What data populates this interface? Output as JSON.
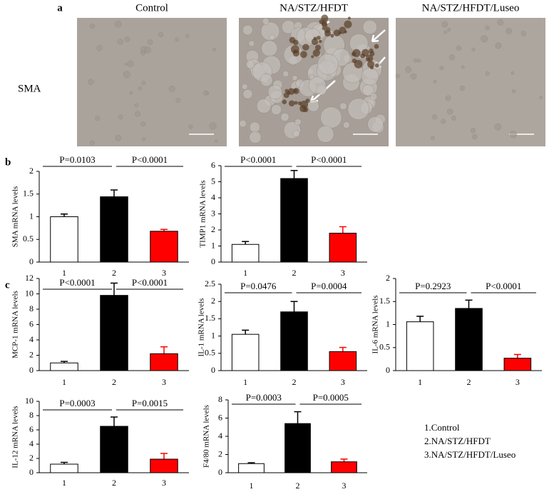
{
  "panel_a": {
    "label": "a",
    "columns": [
      "Control",
      "NA/STZ/HFDT",
      "NA/STZ/HFDT/Luseo"
    ],
    "row_label": "SMA"
  },
  "panel_labels": [
    "b",
    "c"
  ],
  "legend_items": [
    "1.Control",
    "2.NA/STZ/HFDT",
    "3.NA/STZ/HFDT/Luseo"
  ],
  "chart_data": [
    {
      "type": "bar",
      "ylabel": "SMA mRNA levels",
      "categories": [
        "1",
        "2",
        "3"
      ],
      "values": [
        1.0,
        1.44,
        0.68
      ],
      "errors": [
        0.06,
        0.15,
        0.04
      ],
      "colors": [
        "#ffffff",
        "#000000",
        "#ff0000"
      ],
      "ylim": [
        0,
        2
      ],
      "yticks": [
        0,
        0.5,
        1,
        1.5,
        2
      ],
      "comparisons": [
        "P=0.0103",
        "P<0.0001"
      ]
    },
    {
      "type": "bar",
      "ylabel": "TIMP1 mRNA levels",
      "categories": [
        "1",
        "2",
        "3"
      ],
      "values": [
        1.1,
        5.2,
        1.8
      ],
      "errors": [
        0.18,
        0.5,
        0.4
      ],
      "colors": [
        "#ffffff",
        "#000000",
        "#ff0000"
      ],
      "ylim": [
        0,
        6
      ],
      "yticks": [
        0,
        1,
        2,
        3,
        4,
        5,
        6
      ],
      "comparisons": [
        "P<0.0001",
        "P<0.0001"
      ]
    },
    {
      "type": "bar",
      "ylabel": "MCP-1 mRNA levels",
      "categories": [
        "1",
        "2",
        "3"
      ],
      "values": [
        1.0,
        9.8,
        2.2
      ],
      "errors": [
        0.2,
        1.6,
        0.9
      ],
      "colors": [
        "#ffffff",
        "#000000",
        "#ff0000"
      ],
      "ylim": [
        0,
        12
      ],
      "yticks": [
        0,
        2,
        4,
        6,
        8,
        10,
        12
      ],
      "comparisons": [
        "P<0.0001",
        "P<0.0001"
      ]
    },
    {
      "type": "bar",
      "ylabel": "IL-1 mRNA levels",
      "categories": [
        "1",
        "2",
        "3"
      ],
      "values": [
        1.05,
        1.7,
        0.55
      ],
      "errors": [
        0.12,
        0.3,
        0.12
      ],
      "colors": [
        "#ffffff",
        "#000000",
        "#ff0000"
      ],
      "ylim": [
        0,
        2.5
      ],
      "yticks": [
        0,
        0.5,
        1,
        1.5,
        2,
        2.5
      ],
      "comparisons": [
        "P=0.0476",
        "P=0.0004"
      ]
    },
    {
      "type": "bar",
      "ylabel": "IL-6 mRNA levels",
      "categories": [
        "1",
        "2",
        "3"
      ],
      "values": [
        1.06,
        1.35,
        0.27
      ],
      "errors": [
        0.12,
        0.18,
        0.08
      ],
      "colors": [
        "#ffffff",
        "#000000",
        "#ff0000"
      ],
      "ylim": [
        0,
        2
      ],
      "yticks": [
        0,
        0.5,
        1,
        1.5,
        2
      ],
      "comparisons": [
        "P=0.2923",
        "P<0.0001"
      ]
    },
    {
      "type": "bar",
      "ylabel": "IL-12 mRNA levels",
      "categories": [
        "1",
        "2",
        "3"
      ],
      "values": [
        1.2,
        6.5,
        1.9
      ],
      "errors": [
        0.25,
        1.3,
        0.8
      ],
      "colors": [
        "#ffffff",
        "#000000",
        "#ff0000"
      ],
      "ylim": [
        0,
        10
      ],
      "yticks": [
        0,
        2,
        4,
        6,
        8,
        10
      ],
      "comparisons": [
        "P=0.0003",
        "P=0.0015"
      ]
    },
    {
      "type": "bar",
      "ylabel": "F4/80 mRNA levels",
      "categories": [
        "1",
        "2",
        "3"
      ],
      "values": [
        1.0,
        5.4,
        1.2
      ],
      "errors": [
        0.1,
        1.3,
        0.3
      ],
      "colors": [
        "#ffffff",
        "#000000",
        "#ff0000"
      ],
      "ylim": [
        0,
        8
      ],
      "yticks": [
        0,
        2,
        4,
        6,
        8
      ],
      "comparisons": [
        "P=0.0003",
        "P=0.0005"
      ]
    }
  ]
}
